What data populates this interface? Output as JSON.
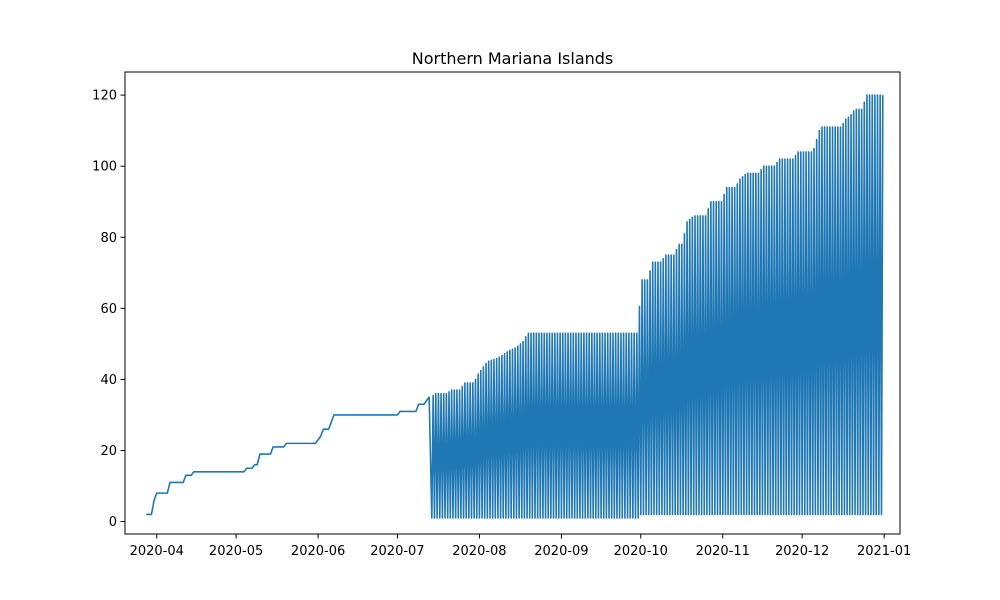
{
  "chart_data": {
    "type": "line",
    "title": "Northern Mariana Islands",
    "xlabel": "",
    "ylabel": "",
    "x_range": [
      "2020-03-20",
      "2021-01-07"
    ],
    "ylim": [
      -3.5,
      126.5
    ],
    "x_ticks": [
      "2020-04",
      "2020-05",
      "2020-06",
      "2020-07",
      "2020-08",
      "2020-09",
      "2020-10",
      "2020-11",
      "2020-12",
      "2021-01"
    ],
    "y_ticks": [
      "0",
      "20",
      "40",
      "60",
      "80",
      "100",
      "120"
    ],
    "grid": false,
    "legend": "none",
    "series": [
      {
        "color": "#1f77b4",
        "points": [
          [
            "2020-03-28",
            2
          ],
          [
            "2020-03-30",
            2
          ],
          [
            "2020-03-31",
            6
          ],
          [
            "2020-04-01",
            8
          ],
          [
            "2020-04-05",
            8
          ],
          [
            "2020-04-06",
            11
          ],
          [
            "2020-04-11",
            11
          ],
          [
            "2020-04-12",
            13
          ],
          [
            "2020-04-14",
            13
          ],
          [
            "2020-04-15",
            14
          ],
          [
            "2020-05-04",
            14
          ],
          [
            "2020-05-05",
            15
          ],
          [
            "2020-05-07",
            15
          ],
          [
            "2020-05-08",
            16
          ],
          [
            "2020-05-09",
            16
          ],
          [
            "2020-05-10",
            19
          ],
          [
            "2020-05-14",
            19
          ],
          [
            "2020-05-15",
            21
          ],
          [
            "2020-05-19",
            21
          ],
          [
            "2020-05-20",
            22
          ],
          [
            "2020-05-31",
            22
          ],
          [
            "2020-06-02",
            24
          ],
          [
            "2020-06-03",
            26
          ],
          [
            "2020-06-05",
            26
          ],
          [
            "2020-06-06",
            28
          ],
          [
            "2020-06-07",
            30
          ],
          [
            "2020-07-01",
            30
          ],
          [
            "2020-07-02",
            31
          ],
          [
            "2020-07-08",
            31
          ],
          [
            "2020-07-09",
            33
          ],
          [
            "2020-07-11",
            33
          ],
          [
            "2020-07-13",
            35
          ]
        ],
        "oscillation": {
          "start": "2020-07-14",
          "end": "2020-12-31",
          "low_segments": [
            {
              "from": "2020-07-14",
              "to": "2020-09-30",
              "low": 1
            },
            {
              "from": "2020-10-01",
              "to": "2020-12-31",
              "low": 2
            }
          ],
          "high_envelope": [
            [
              "2020-07-14",
              35
            ],
            [
              "2020-07-15",
              36
            ],
            [
              "2020-07-20",
              36
            ],
            [
              "2020-07-21",
              37
            ],
            [
              "2020-07-25",
              37
            ],
            [
              "2020-07-26",
              39
            ],
            [
              "2020-07-30",
              39
            ],
            [
              "2020-07-31",
              41
            ],
            [
              "2020-08-02",
              43
            ],
            [
              "2020-08-04",
              45
            ],
            [
              "2020-08-08",
              46
            ],
            [
              "2020-08-10",
              47
            ],
            [
              "2020-08-12",
              48
            ],
            [
              "2020-08-15",
              49
            ],
            [
              "2020-08-18",
              51
            ],
            [
              "2020-08-19",
              53
            ],
            [
              "2020-09-30",
              53
            ],
            [
              "2020-10-01",
              68
            ],
            [
              "2020-10-04",
              68
            ],
            [
              "2020-10-05",
              73
            ],
            [
              "2020-10-09",
              73
            ],
            [
              "2020-10-10",
              75
            ],
            [
              "2020-10-14",
              75
            ],
            [
              "2020-10-15",
              78
            ],
            [
              "2020-10-17",
              78
            ],
            [
              "2020-10-18",
              84
            ],
            [
              "2020-10-21",
              86
            ],
            [
              "2020-10-26",
              86
            ],
            [
              "2020-10-27",
              90
            ],
            [
              "2020-11-01",
              90
            ],
            [
              "2020-11-02",
              94
            ],
            [
              "2020-11-06",
              94
            ],
            [
              "2020-11-07",
              96
            ],
            [
              "2020-11-10",
              98
            ],
            [
              "2020-11-15",
              98
            ],
            [
              "2020-11-16",
              100
            ],
            [
              "2020-11-21",
              100
            ],
            [
              "2020-11-22",
              102
            ],
            [
              "2020-11-28",
              102
            ],
            [
              "2020-11-29",
              104
            ],
            [
              "2020-12-05",
              104
            ],
            [
              "2020-12-06",
              106
            ],
            [
              "2020-12-07",
              109
            ],
            [
              "2020-12-08",
              111
            ],
            [
              "2020-12-16",
              111
            ],
            [
              "2020-12-17",
              113
            ],
            [
              "2020-12-19",
              114
            ],
            [
              "2020-12-21",
              116
            ],
            [
              "2020-12-24",
              116
            ],
            [
              "2020-12-25",
              120
            ],
            [
              "2020-12-31",
              120
            ]
          ]
        }
      }
    ]
  }
}
